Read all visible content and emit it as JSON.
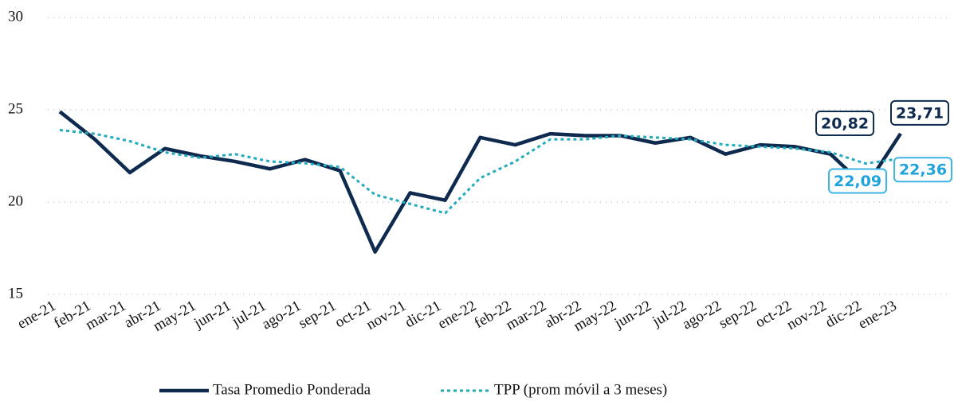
{
  "chart_data": {
    "type": "line",
    "categories": [
      "ene-21",
      "feb-21",
      "mar-21",
      "abr-21",
      "may-21",
      "jun-21",
      "jul-21",
      "ago-21",
      "sep-21",
      "oct-21",
      "nov-21",
      "dic-21",
      "ene-22",
      "feb-22",
      "mar-22",
      "abr-22",
      "may-22",
      "jun-22",
      "jul-22",
      "ago-22",
      "sep-22",
      "oct-22",
      "nov-22",
      "dic-22",
      "ene-23"
    ],
    "series": [
      {
        "name": "Tasa Promedio Ponderada",
        "color": "#0f2a4f",
        "style": "solid",
        "values": [
          24.9,
          23.4,
          21.6,
          22.9,
          22.5,
          22.2,
          21.8,
          22.3,
          21.7,
          17.3,
          20.5,
          20.1,
          23.5,
          23.1,
          23.7,
          23.6,
          23.6,
          23.2,
          23.5,
          22.6,
          23.1,
          23.0,
          22.6,
          20.82,
          23.71
        ],
        "value_labels": [
          null,
          null,
          null,
          null,
          null,
          null,
          null,
          null,
          null,
          null,
          null,
          null,
          null,
          null,
          null,
          null,
          null,
          null,
          null,
          null,
          null,
          null,
          null,
          "20,82",
          "23,71"
        ]
      },
      {
        "name": "TPP (prom móvil a 3 meses)",
        "color": "#22aabd",
        "style": "dotted",
        "values": [
          23.9,
          23.7,
          23.3,
          22.7,
          22.4,
          22.6,
          22.2,
          22.1,
          21.9,
          20.4,
          19.9,
          19.4,
          21.3,
          22.2,
          23.4,
          23.4,
          23.6,
          23.5,
          23.4,
          23.1,
          23.0,
          22.9,
          22.7,
          22.09,
          22.36
        ],
        "value_labels": [
          null,
          null,
          null,
          null,
          null,
          null,
          null,
          null,
          null,
          null,
          null,
          null,
          null,
          null,
          null,
          null,
          null,
          null,
          null,
          null,
          null,
          null,
          null,
          "22,09",
          "22,36"
        ]
      }
    ],
    "ylim": [
      15,
      30
    ],
    "yticks": [
      15,
      20,
      25,
      30
    ],
    "grid": true,
    "legend": "bottom"
  }
}
